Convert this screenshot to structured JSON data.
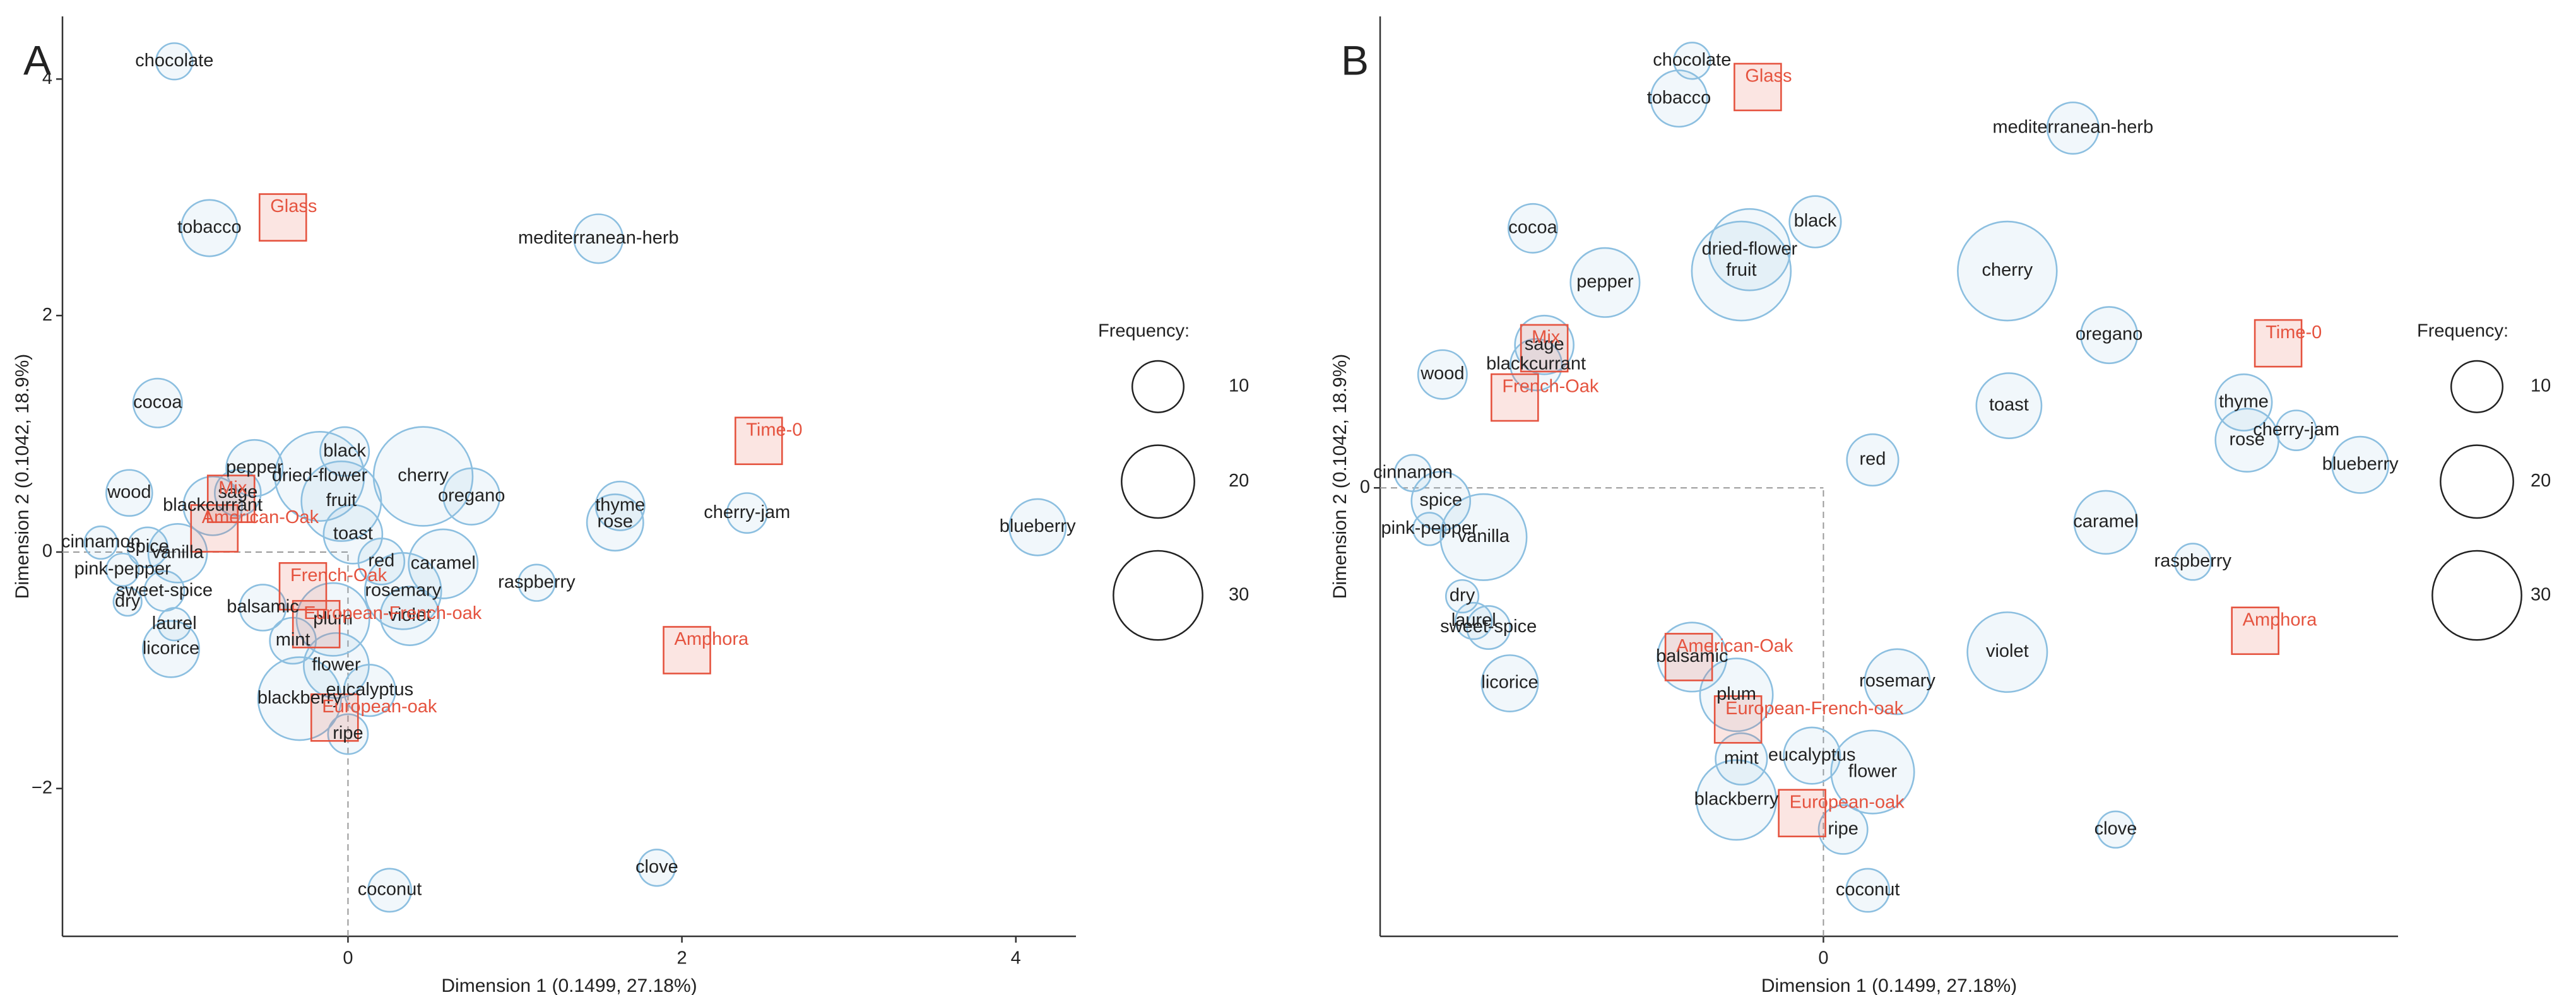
{
  "chart_data": [
    {
      "type": "scatter",
      "panel": "A",
      "xlabel": "Dimension 1  (0.1499,  27.18%)",
      "ylabel": "Dimension 2  (0.1042,  18.9%)",
      "xlim": [
        -1.71,
        4.36
      ],
      "ylim": [
        -3.25,
        4.53
      ],
      "xticks": [
        0,
        2,
        4
      ],
      "yticks": [
        {
          "value": -2,
          "label": "−2"
        },
        0,
        2,
        4
      ],
      "points": {
        "color": "#8cbfe0",
        "labels": [
          "chocolate",
          "tobacco",
          "mediterranean-herb",
          "cocoa",
          "wood",
          "cinnamon",
          "spice",
          "pink-pepper",
          "dry",
          "laurel",
          "sweet-spice",
          "licorice",
          "vanilla",
          "balsamic",
          "blackcurrant",
          "sage",
          "pepper",
          "black",
          "dried-flower",
          "fruit",
          "cherry",
          "oregano",
          "toast",
          "red",
          "caramel",
          "rosemary",
          "violet",
          "plum",
          "mint",
          "flower",
          "eucalyptus",
          "blackberry",
          "ripe",
          "coconut",
          "raspberry",
          "rose",
          "thyme",
          "cherry-jam",
          "blueberry",
          "clove"
        ],
        "x": [
          -1.04,
          -0.83,
          1.5,
          -1.14,
          -1.31,
          -1.48,
          -1.2,
          -1.35,
          -1.32,
          -1.04,
          -1.1,
          -1.06,
          -1.02,
          -0.51,
          -0.81,
          -0.66,
          -0.56,
          -0.02,
          -0.17,
          -0.04,
          0.45,
          0.74,
          0.03,
          0.2,
          0.57,
          0.33,
          0.37,
          -0.09,
          -0.33,
          -0.07,
          0.13,
          -0.29,
          0,
          0.25,
          1.13,
          1.6,
          1.63,
          2.39,
          4.13,
          1.85
        ],
        "y": [
          4.15,
          2.74,
          2.65,
          1.26,
          0.5,
          0.08,
          0.04,
          -0.15,
          -0.42,
          -0.61,
          -0.33,
          -0.82,
          -0.01,
          -0.47,
          0.39,
          0.5,
          0.71,
          0.85,
          0.64,
          0.43,
          0.64,
          0.47,
          0.15,
          -0.08,
          -0.1,
          -0.33,
          -0.54,
          -0.57,
          -0.75,
          -0.96,
          -1.17,
          -1.24,
          -1.54,
          -2.86,
          -0.26,
          0.25,
          0.39,
          0.33,
          0.21,
          -2.67
        ],
        "size": [
          5,
          12,
          9,
          9,
          8,
          4,
          6,
          4,
          3,
          4,
          6,
          12,
          13,
          8,
          13,
          8,
          12,
          9,
          30,
          24,
          37,
          12,
          13,
          8,
          18,
          22,
          13,
          20,
          8,
          16,
          10,
          26,
          6,
          7,
          5,
          12,
          9,
          6,
          12,
          5
        ]
      },
      "factors": {
        "color": "#e5533f",
        "labels": [
          "Glass",
          "Time-0",
          "Mix",
          "American-Oak",
          "French-Oak",
          "European-French-oak",
          "European-oak",
          "Amphora"
        ],
        "x": [
          -0.39,
          2.46,
          -0.7,
          -0.8,
          -0.27,
          -0.19,
          -0.08,
          2.03
        ],
        "y": [
          2.83,
          0.94,
          0.45,
          0.2,
          -0.29,
          -0.61,
          -1.4,
          -0.83
        ]
      },
      "size_legend": {
        "title": "Frequency:",
        "values": [
          10,
          20,
          30
        ]
      }
    },
    {
      "type": "scatter",
      "panel": "B",
      "xlabel": "Dimension 1  (0.1499,  27.18%)",
      "ylabel": "Dimension 2  (0.1042,  18.9%)",
      "xlim": [
        -2.7,
        3.5
      ],
      "ylim": [
        -2.73,
        2.87
      ],
      "xticks": [
        0
      ],
      "yticks": [
        0
      ],
      "points": {
        "color": "#8cbfe0",
        "labels": [
          "chocolate",
          "tobacco",
          "mediterranean-herb",
          "black",
          "cocoa",
          "dried-flower",
          "fruit",
          "cherry",
          "pepper",
          "oregano",
          "sage",
          "blackcurrant",
          "wood",
          "toast",
          "thyme",
          "rose",
          "cherry-jam",
          "blueberry",
          "red",
          "cinnamon",
          "spice",
          "pink-pepper",
          "vanilla",
          "caramel",
          "raspberry",
          "dry",
          "laurel",
          "sweet-spice",
          "licorice",
          "balsamic",
          "violet",
          "rosemary",
          "plum",
          "mint",
          "eucalyptus",
          "flower",
          "blackberry",
          "ripe",
          "clove",
          "coconut"
        ],
        "x": [
          -0.8,
          -0.88,
          1.52,
          -0.05,
          -1.77,
          -0.45,
          -0.5,
          1.12,
          -1.33,
          1.74,
          -1.7,
          -1.75,
          -2.32,
          1.13,
          2.56,
          2.58,
          2.88,
          3.27,
          0.3,
          -2.5,
          -2.33,
          -2.4,
          -2.07,
          1.72,
          2.25,
          -2.2,
          -2.13,
          -2.04,
          -1.91,
          -0.8,
          1.12,
          0.45,
          -0.53,
          -0.5,
          -0.07,
          0.3,
          -0.53,
          0.12,
          1.78,
          0.27
        ],
        "y": [
          2.6,
          2.37,
          2.19,
          1.62,
          1.58,
          1.45,
          1.32,
          1.32,
          1.25,
          0.93,
          0.87,
          0.75,
          0.69,
          0.5,
          0.52,
          0.29,
          0.35,
          0.14,
          0.17,
          0.09,
          -0.08,
          -0.25,
          -0.3,
          -0.21,
          -0.45,
          -0.66,
          -0.81,
          -0.85,
          -1.19,
          -1.03,
          -1.0,
          -1.18,
          -1.26,
          -1.65,
          -1.63,
          -1.73,
          -1.9,
          -2.08,
          -2.08,
          -2.45
        ],
        "size": [
          5,
          12,
          10,
          10,
          9,
          25,
          37,
          37,
          18,
          12,
          13,
          10,
          9,
          16,
          12,
          15,
          6,
          12,
          10,
          5,
          13,
          4,
          28,
          15,
          5,
          4,
          5,
          7,
          12,
          18,
          24,
          16,
          20,
          10,
          12,
          26,
          24,
          9,
          5,
          7
        ]
      },
      "factors": {
        "color": "#e5533f",
        "labels": [
          "Glass",
          "Mix",
          "French-Oak",
          "Time-0",
          "Amphora",
          "American-Oak",
          "European-French-oak",
          "European-oak"
        ],
        "x": [
          -0.4,
          -1.7,
          -1.88,
          2.77,
          2.63,
          -0.82,
          -0.52,
          -0.13
        ],
        "y": [
          2.44,
          0.85,
          0.55,
          0.88,
          -0.87,
          -1.03,
          -1.41,
          -1.98
        ]
      },
      "size_legend": {
        "title": "Frequency:",
        "values": [
          10,
          20,
          30
        ]
      }
    }
  ]
}
